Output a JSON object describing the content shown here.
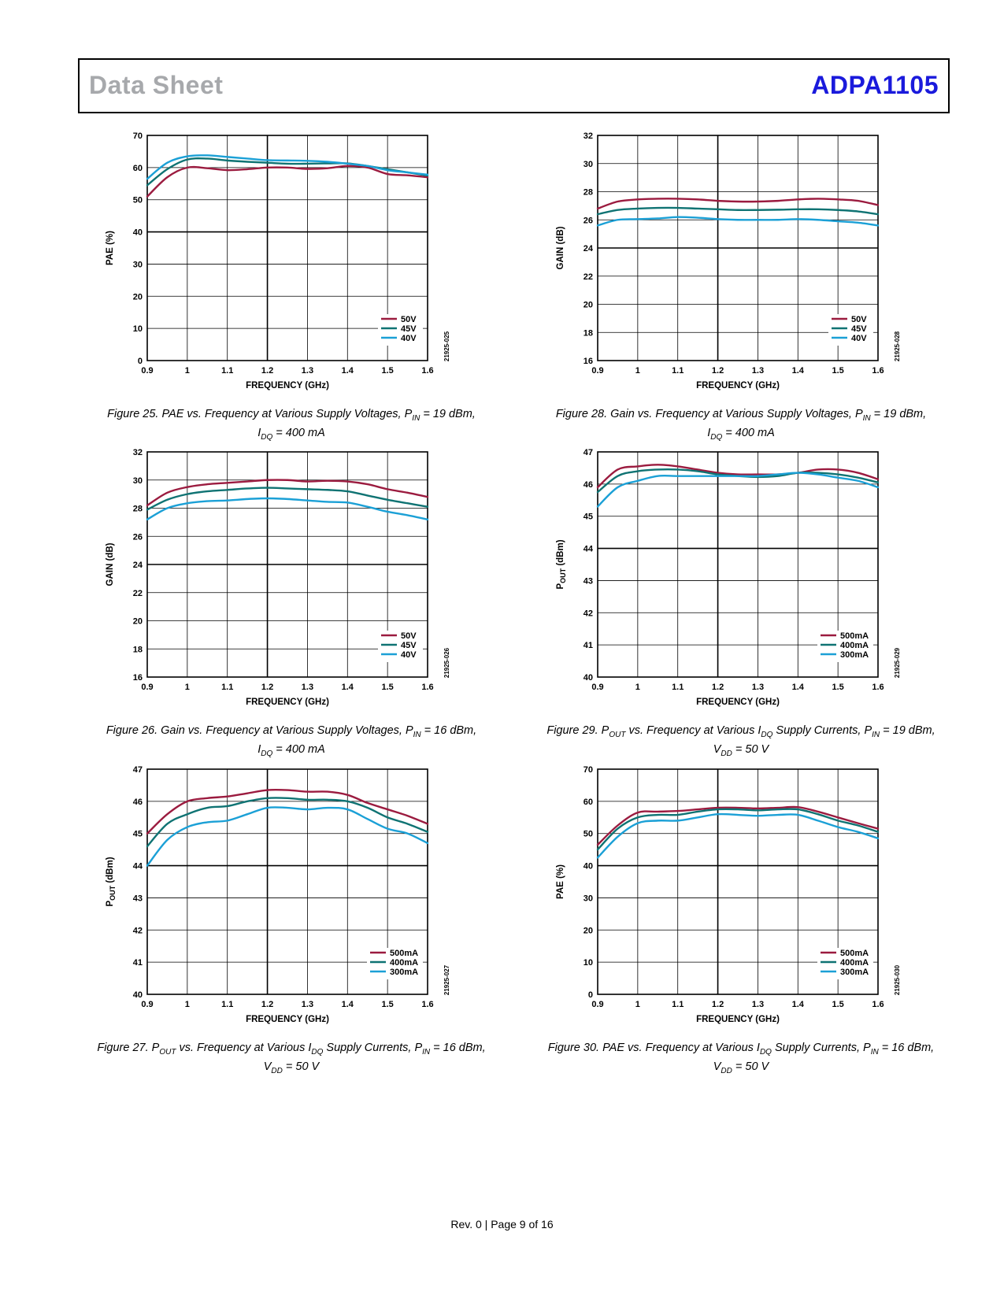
{
  "header": {
    "left": "Data Sheet",
    "right": "ADPA1105"
  },
  "footer": {
    "rev": "Rev. 0",
    "sep": " | ",
    "page": "Page 9 of 16"
  },
  "chart_data": [
    {
      "id": "fig25",
      "type": "line",
      "ylabel": "PAE (%)",
      "xlabel": "FREQUENCY (GHz)",
      "xlim": [
        0.9,
        1.6
      ],
      "ylim": [
        0,
        70
      ],
      "yticks": [
        0,
        10,
        20,
        30,
        40,
        50,
        60,
        70
      ],
      "xticks": [
        0.9,
        1.0,
        1.1,
        1.2,
        1.3,
        1.4,
        1.5,
        1.6
      ],
      "figcode": "21925-025",
      "caption": [
        "Figure 25. PAE vs. Frequency at Various Supply Voltages, P",
        "IN",
        " = 19 dBm, ",
        "I",
        "DQ",
        " = 400 mA"
      ],
      "x": [
        0.9,
        0.95,
        1.0,
        1.05,
        1.1,
        1.15,
        1.2,
        1.25,
        1.3,
        1.35,
        1.4,
        1.45,
        1.5,
        1.55,
        1.6
      ],
      "series": [
        {
          "name": "50V",
          "color": "#9b1b3f",
          "values": [
            51,
            57,
            60,
            59.8,
            59.2,
            59.5,
            60,
            60,
            59.6,
            59.8,
            60.5,
            60,
            58,
            57.6,
            57
          ]
        },
        {
          "name": "45V",
          "color": "#0f7373",
          "values": [
            54.5,
            59.5,
            62.5,
            62.8,
            62.2,
            61.8,
            61.5,
            61.2,
            61.2,
            61.3,
            61.3,
            60.5,
            59.5,
            58.5,
            57.5
          ]
        },
        {
          "name": "40V",
          "color": "#1ba0d6",
          "values": [
            56.5,
            61.5,
            63.5,
            63.8,
            63.3,
            62.8,
            62.3,
            62.2,
            62.1,
            61.8,
            61.2,
            60.5,
            59.2,
            58.5,
            57.8
          ]
        }
      ]
    },
    {
      "id": "fig28",
      "type": "line",
      "ylabel": "GAIN (dB)",
      "xlabel": "FREQUENCY (GHz)",
      "xlim": [
        0.9,
        1.6
      ],
      "ylim": [
        16,
        32
      ],
      "yticks": [
        16,
        18,
        20,
        22,
        24,
        26,
        28,
        30,
        32
      ],
      "xticks": [
        0.9,
        1.0,
        1.1,
        1.2,
        1.3,
        1.4,
        1.5,
        1.6
      ],
      "figcode": "21925-028",
      "caption": [
        "Figure 28. Gain vs. Frequency at Various Supply Voltages, P",
        "IN",
        " = 19 dBm, ",
        "I",
        "DQ",
        " = 400 mA"
      ],
      "x": [
        0.9,
        0.95,
        1.0,
        1.05,
        1.1,
        1.15,
        1.2,
        1.25,
        1.3,
        1.35,
        1.4,
        1.45,
        1.5,
        1.55,
        1.6
      ],
      "series": [
        {
          "name": "50V",
          "color": "#9b1b3f",
          "values": [
            26.8,
            27.3,
            27.45,
            27.5,
            27.5,
            27.45,
            27.35,
            27.3,
            27.3,
            27.35,
            27.45,
            27.5,
            27.45,
            27.35,
            27.05
          ]
        },
        {
          "name": "45V",
          "color": "#0f7373",
          "values": [
            26.4,
            26.7,
            26.8,
            26.85,
            26.85,
            26.8,
            26.75,
            26.7,
            26.7,
            26.72,
            26.75,
            26.75,
            26.7,
            26.6,
            26.4
          ]
        },
        {
          "name": "40V",
          "color": "#1ba0d6",
          "values": [
            25.6,
            26.0,
            26.05,
            26.1,
            26.2,
            26.15,
            26.05,
            26.0,
            26.0,
            26.0,
            26.05,
            26.0,
            25.9,
            25.8,
            25.6
          ]
        }
      ]
    },
    {
      "id": "fig26",
      "type": "line",
      "ylabel": "GAIN (dB)",
      "xlabel": "FREQUENCY (GHz)",
      "xlim": [
        0.9,
        1.6
      ],
      "ylim": [
        16,
        32
      ],
      "yticks": [
        16,
        18,
        20,
        22,
        24,
        26,
        28,
        30,
        32
      ],
      "xticks": [
        0.9,
        1.0,
        1.1,
        1.2,
        1.3,
        1.4,
        1.5,
        1.6
      ],
      "figcode": "21925-026",
      "caption": [
        "Figure 26. Gain vs. Frequency at Various Supply Voltages, P",
        "IN",
        " = 16 dBm, ",
        "I",
        "DQ",
        " = 400 mA"
      ],
      "x": [
        0.9,
        0.95,
        1.0,
        1.05,
        1.1,
        1.15,
        1.2,
        1.25,
        1.3,
        1.35,
        1.4,
        1.45,
        1.5,
        1.55,
        1.6
      ],
      "series": [
        {
          "name": "50V",
          "color": "#9b1b3f",
          "values": [
            28.2,
            29.1,
            29.5,
            29.7,
            29.8,
            29.9,
            30.0,
            30.0,
            29.9,
            29.95,
            29.9,
            29.7,
            29.35,
            29.1,
            28.8
          ]
        },
        {
          "name": "45V",
          "color": "#0f7373",
          "values": [
            27.9,
            28.6,
            29.0,
            29.2,
            29.3,
            29.4,
            29.45,
            29.4,
            29.35,
            29.3,
            29.2,
            28.9,
            28.6,
            28.35,
            28.1
          ]
        },
        {
          "name": "40V",
          "color": "#1ba0d6",
          "values": [
            27.2,
            28.0,
            28.35,
            28.5,
            28.55,
            28.65,
            28.7,
            28.65,
            28.55,
            28.45,
            28.4,
            28.1,
            27.75,
            27.5,
            27.2
          ]
        }
      ]
    },
    {
      "id": "fig29",
      "type": "line",
      "ylabel": "POUT (dBm)",
      "xlabel": "FREQUENCY (GHz)",
      "xlim": [
        0.9,
        1.6
      ],
      "ylim": [
        40,
        47
      ],
      "yticks": [
        40,
        41,
        42,
        43,
        44,
        45,
        46,
        47
      ],
      "xticks": [
        0.9,
        1.0,
        1.1,
        1.2,
        1.3,
        1.4,
        1.5,
        1.6
      ],
      "figcode": "21925-029",
      "caption": [
        "Figure 29. P",
        "OUT",
        " vs. Frequency at Various I",
        "DQ",
        " Supply Currents, P",
        "IN",
        " = 19 dBm, ",
        "V",
        "DD",
        " = 50 V"
      ],
      "x": [
        0.9,
        0.95,
        1.0,
        1.05,
        1.1,
        1.15,
        1.2,
        1.25,
        1.3,
        1.35,
        1.4,
        1.45,
        1.5,
        1.55,
        1.6
      ],
      "series": [
        {
          "name": "500mA",
          "color": "#9b1b3f",
          "values": [
            45.9,
            46.45,
            46.55,
            46.6,
            46.55,
            46.45,
            46.35,
            46.3,
            46.3,
            46.3,
            46.35,
            46.45,
            46.45,
            46.35,
            46.15
          ]
        },
        {
          "name": "400mA",
          "color": "#0f7373",
          "values": [
            45.75,
            46.25,
            46.4,
            46.45,
            46.45,
            46.4,
            46.3,
            46.25,
            46.22,
            46.25,
            46.35,
            46.35,
            46.3,
            46.2,
            46.05
          ]
        },
        {
          "name": "300mA",
          "color": "#1ba0d6",
          "values": [
            45.3,
            45.9,
            46.1,
            46.25,
            46.25,
            46.25,
            46.25,
            46.25,
            46.25,
            46.3,
            46.35,
            46.3,
            46.2,
            46.1,
            45.9
          ]
        }
      ]
    },
    {
      "id": "fig27",
      "type": "line",
      "ylabel": "POUT (dBm)",
      "xlabel": "FREQUENCY (GHz)",
      "xlim": [
        0.9,
        1.6
      ],
      "ylim": [
        40,
        47
      ],
      "yticks": [
        40,
        41,
        42,
        43,
        44,
        45,
        46,
        47
      ],
      "xticks": [
        0.9,
        1.0,
        1.1,
        1.2,
        1.3,
        1.4,
        1.5,
        1.6
      ],
      "figcode": "21925-027",
      "caption": [
        "Figure 27. P",
        "OUT",
        " vs. Frequency at Various I",
        "DQ",
        " Supply Currents, P",
        "IN",
        " = 16 dBm, ",
        "V",
        "DD",
        " = 50 V"
      ],
      "x": [
        0.9,
        0.95,
        1.0,
        1.05,
        1.1,
        1.15,
        1.2,
        1.25,
        1.3,
        1.35,
        1.4,
        1.45,
        1.5,
        1.55,
        1.6
      ],
      "series": [
        {
          "name": "500mA",
          "color": "#9b1b3f",
          "values": [
            45.0,
            45.6,
            46.0,
            46.1,
            46.15,
            46.25,
            46.35,
            46.35,
            46.3,
            46.3,
            46.2,
            45.95,
            45.75,
            45.55,
            45.3
          ]
        },
        {
          "name": "400mA",
          "color": "#0f7373",
          "values": [
            44.6,
            45.3,
            45.6,
            45.8,
            45.85,
            46.0,
            46.1,
            46.1,
            46.05,
            46.05,
            46.0,
            45.8,
            45.5,
            45.3,
            45.05
          ]
        },
        {
          "name": "300mA",
          "color": "#1ba0d6",
          "values": [
            44.0,
            44.8,
            45.2,
            45.35,
            45.4,
            45.6,
            45.8,
            45.8,
            45.75,
            45.8,
            45.75,
            45.45,
            45.15,
            45.0,
            44.7
          ]
        }
      ]
    },
    {
      "id": "fig30",
      "type": "line",
      "ylabel": "PAE (%)",
      "xlabel": "FREQUENCY (GHz)",
      "xlim": [
        0.9,
        1.6
      ],
      "ylim": [
        0,
        70
      ],
      "yticks": [
        0,
        10,
        20,
        30,
        40,
        50,
        60,
        70
      ],
      "xticks": [
        0.9,
        1.0,
        1.1,
        1.2,
        1.3,
        1.4,
        1.5,
        1.6
      ],
      "figcode": "21925-030",
      "caption": [
        "Figure 30. PAE vs. Frequency at Various I",
        "DQ",
        " Supply Currents, P",
        "IN",
        " = 16 dBm, ",
        "V",
        "DD",
        " = 50 V"
      ],
      "x": [
        0.9,
        0.95,
        1.0,
        1.05,
        1.1,
        1.15,
        1.2,
        1.25,
        1.3,
        1.35,
        1.4,
        1.45,
        1.5,
        1.55,
        1.6
      ],
      "series": [
        {
          "name": "500mA",
          "color": "#9b1b3f",
          "values": [
            46.5,
            52.5,
            56.5,
            56.8,
            57.0,
            57.5,
            58.0,
            58.0,
            57.8,
            58.0,
            58.2,
            56.8,
            55.0,
            53.2,
            51.5
          ]
        },
        {
          "name": "400mA",
          "color": "#0f7373",
          "values": [
            45.0,
            51.5,
            55.0,
            55.8,
            55.8,
            56.8,
            57.5,
            57.5,
            57.2,
            57.5,
            57.5,
            56.0,
            54.0,
            52.5,
            50.5
          ]
        },
        {
          "name": "300mA",
          "color": "#1ba0d6",
          "values": [
            42.5,
            49.0,
            53.2,
            54.0,
            54.0,
            55.0,
            56.0,
            55.8,
            55.5,
            55.8,
            55.8,
            54.0,
            52.0,
            50.5,
            48.5
          ]
        }
      ]
    }
  ]
}
